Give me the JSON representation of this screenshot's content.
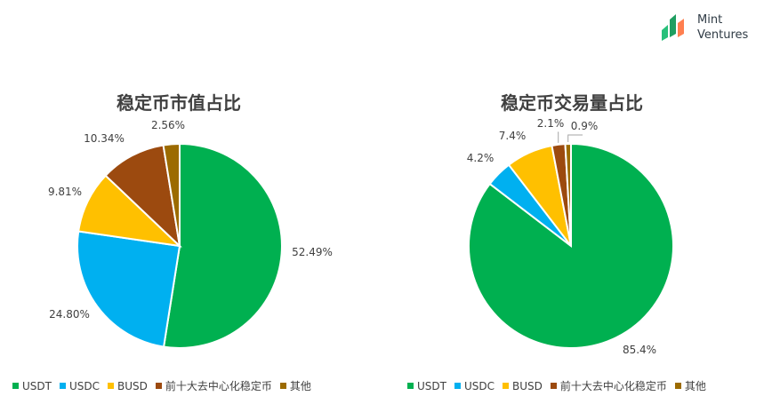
{
  "logo": {
    "line1": "Mint",
    "line2": "Ventures"
  },
  "chart_data": [
    {
      "type": "pie",
      "title": "稳定币市值占比",
      "categories": [
        "USDT",
        "USDC",
        "BUSD",
        "前十大去中心化稳定币",
        "其他"
      ],
      "values": [
        52.49,
        24.8,
        9.81,
        10.34,
        2.56
      ],
      "labels": [
        "52.49%",
        "24.80%",
        "9.81%",
        "10.34%",
        "2.56%"
      ],
      "colors": [
        "#00b050",
        "#00b0f0",
        "#ffc000",
        "#9c4a0f",
        "#9c6b00"
      ],
      "legend": "bottom"
    },
    {
      "type": "pie",
      "title": "稳定币交易量占比",
      "categories": [
        "USDT",
        "USDC",
        "BUSD",
        "前十大去中心化稳定币",
        "其他"
      ],
      "values": [
        85.4,
        4.2,
        7.4,
        2.1,
        0.9
      ],
      "labels": [
        "85.4%",
        "4.2%",
        "7.4%",
        "2.1%",
        "0.9%"
      ],
      "colors": [
        "#00b050",
        "#00b0f0",
        "#ffc000",
        "#9c4a0f",
        "#9c6b00"
      ],
      "legend": "bottom"
    }
  ]
}
